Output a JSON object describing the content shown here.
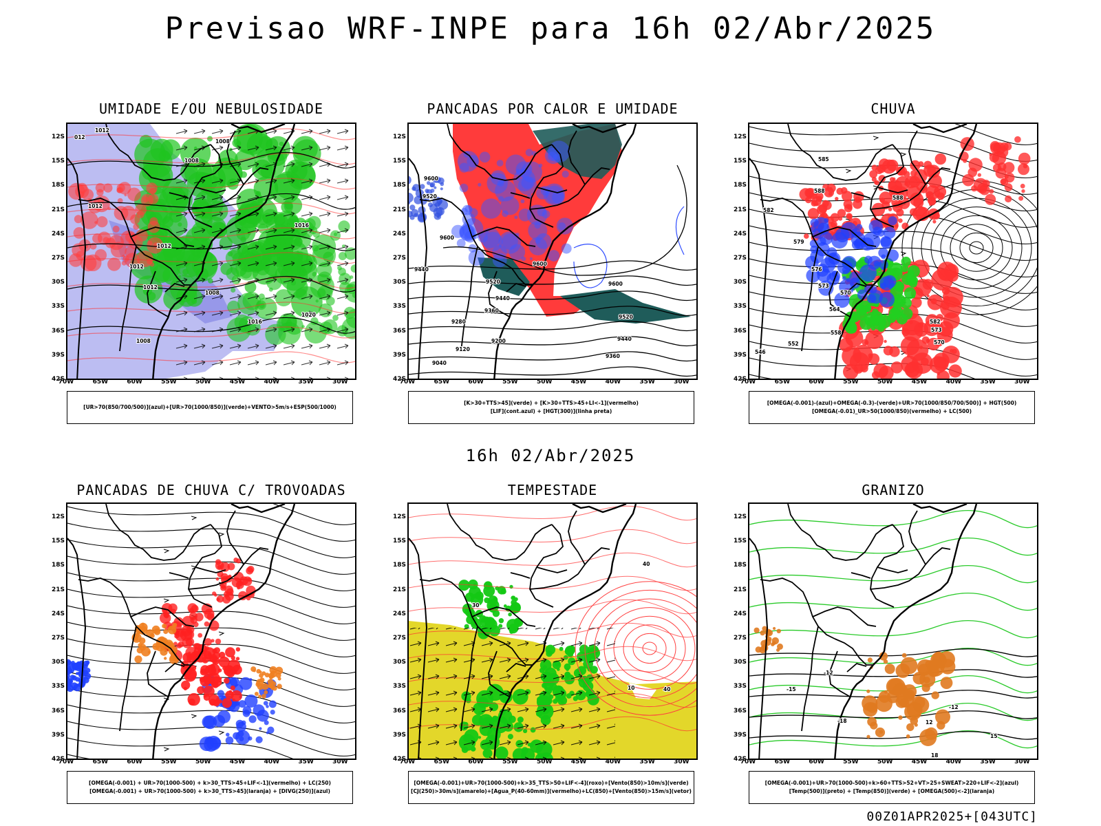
{
  "title": "Previsao WRF-INPE  para 16h 02/Abr/2025",
  "mid_title": "16h 02/Abr/2025",
  "footer": "00Z01APR2025+[043UTC]",
  "axes": {
    "lat_ticks": [
      "12S",
      "15S",
      "18S",
      "21S",
      "24S",
      "27S",
      "30S",
      "33S",
      "36S",
      "39S",
      "42S"
    ],
    "lon_ticks": [
      "70W",
      "65W",
      "60W",
      "55W",
      "50W",
      "45W",
      "40W",
      "35W",
      "30W"
    ]
  },
  "panels": [
    {
      "title": "UMIDADE E/OU NEBULOSIDADE",
      "legend": [
        "[UR>70(850/700/500)](azul)+[UR>70(1000/850)](verde)+VENTO>5m/s+ESP(500/1000)"
      ],
      "labels": [
        [
          "012",
          10,
          22
        ],
        [
          "1012",
          40,
          12
        ],
        [
          "1008",
          215,
          28
        ],
        [
          "1008",
          170,
          56
        ],
        [
          "1012",
          30,
          122
        ],
        [
          "1012",
          130,
          180
        ],
        [
          "1012",
          90,
          210
        ],
        [
          "1012",
          110,
          240
        ],
        [
          "1016",
          330,
          150
        ],
        [
          "1016",
          262,
          290
        ],
        [
          "1020",
          340,
          280
        ],
        [
          "1008",
          200,
          248
        ],
        [
          "1008",
          100,
          318
        ]
      ]
    },
    {
      "title": "PANCADAS POR CALOR E UMIDADE",
      "legend": [
        "[K>30+TTS>45](verde) + [K>30+TTS>45+LI<-1](vermelho)",
        "[LIF](cont.azul) + [HGT(300)](linha preta)"
      ],
      "labels": [
        [
          "9600",
          22,
          82
        ],
        [
          "9520",
          20,
          108
        ],
        [
          "9600",
          45,
          168
        ],
        [
          "9440",
          8,
          214
        ],
        [
          "9520",
          112,
          232
        ],
        [
          "9600",
          180,
          206
        ],
        [
          "9440",
          126,
          256
        ],
        [
          "9360",
          110,
          274
        ],
        [
          "9280",
          62,
          290
        ],
        [
          "9200",
          120,
          318
        ],
        [
          "9120",
          68,
          330
        ],
        [
          "9040",
          34,
          350
        ],
        [
          "9600",
          290,
          235
        ],
        [
          "9520",
          305,
          283
        ],
        [
          "9440",
          303,
          315
        ],
        [
          "9360",
          286,
          340
        ]
      ]
    },
    {
      "title": "CHUVA",
      "legend": [
        "[OMEGA(-0.001)-(azul)+OMEGA(-0.3)-(verde)+UR>70(1000/850/700/500)] + HGT(500)",
        "[OMEGA(-0.01)_UR>50(1000/850)(vermelho) + LC(500)"
      ],
      "labels": [
        [
          "585",
          100,
          54
        ],
        [
          "588",
          94,
          100
        ],
        [
          "582",
          20,
          128
        ],
        [
          "579",
          64,
          174
        ],
        [
          "576",
          90,
          214
        ],
        [
          "573",
          100,
          238
        ],
        [
          "570",
          132,
          248
        ],
        [
          "564",
          116,
          272
        ],
        [
          "558",
          118,
          306
        ],
        [
          "552",
          56,
          322
        ],
        [
          "546",
          8,
          334
        ],
        [
          "582",
          262,
          290
        ],
        [
          "573",
          264,
          302
        ],
        [
          "570",
          268,
          320
        ],
        [
          "588",
          208,
          110
        ]
      ]
    },
    {
      "title": "PANCADAS DE CHUVA C/ TROVOADAS",
      "legend": [
        "[OMEGA(-0.001) + UR>70(1000-500) + k>30_TTS>45+LIF<-1](vermelho) + LC(250)",
        "[OMEGA(-0.001) + UR>70(1000-500) + k>30_TTS>45](laranja) + [DIVG(250)](azul)"
      ],
      "labels": []
    },
    {
      "title": "TEMPESTADE",
      "legend": [
        "[OMEGA(-0.001)+UR>70(1000-500)+k>35_TTS>50+LIF<-4](roxo)+[Vento(850)>10m/s](verde)",
        "[CJ(250)>30m/s](amarelo)+[Agua_P(40-60mm)](vermelho)+LC(850)+[Vento(850)>15m/s](vetor)"
      ],
      "labels": [
        [
          "40",
          340,
          90
        ],
        [
          "40",
          370,
          272
        ],
        [
          "30",
          92,
          150
        ],
        [
          "10",
          318,
          270
        ]
      ]
    },
    {
      "title": "GRANIZO",
      "legend": [
        "[OMEGA(-0.001)+UR>70(1000-500)+k>60+TTS>52+VT>25+SWEAT>220+LIF<-2](azul)",
        "[Temp(500)](preto) + [Temp(850)](verde) + [OMEGA(500)<-2](laranja)"
      ],
      "labels": [
        [
          "-12",
          108,
          248
        ],
        [
          "-15",
          54,
          272
        ],
        [
          "-18",
          128,
          318
        ],
        [
          "12",
          256,
          320
        ],
        [
          "-12",
          290,
          298
        ],
        [
          "15",
          350,
          340
        ],
        [
          "18",
          264,
          368
        ]
      ]
    }
  ]
}
